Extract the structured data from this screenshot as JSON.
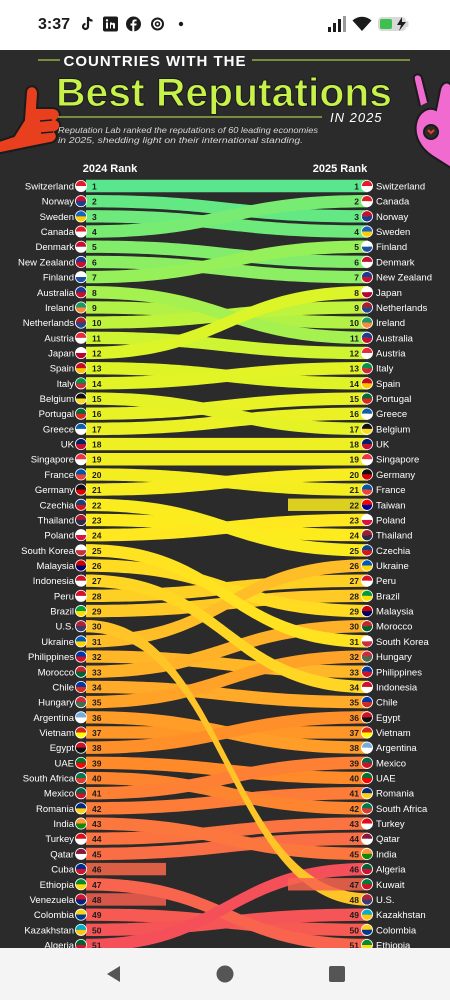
{
  "status_bar": {
    "time": "3:37",
    "icons": [
      "tiktok-icon",
      "linkedin-icon",
      "facebook-icon",
      "threads-icon",
      "dot-icon",
      "signal-icon",
      "wifi-icon",
      "battery-charging-icon"
    ]
  },
  "infographic": {
    "title_line1": "COUNTRIES WITH THE",
    "title_line2": "Best Reputations",
    "title_suffix": "IN 2025",
    "subtitle_line1": "Reputation Lab ranked the reputations of 60 leading economies",
    "subtitle_line2": "in 2025, shedding light on their international standing.",
    "colors": {
      "background": "#2a2a2a",
      "title": "#c6f24a",
      "accent": "#e8401f",
      "hand_right": "#f06ad0"
    }
  },
  "chart_data": {
    "type": "bump",
    "left_header": "2024 Rank",
    "right_header": "2025 Rank",
    "left": [
      {
        "rank": "1",
        "country": "Switzerland"
      },
      {
        "rank": "2",
        "country": "Norway"
      },
      {
        "rank": "3",
        "country": "Sweden"
      },
      {
        "rank": "4",
        "country": "Canada"
      },
      {
        "rank": "5",
        "country": "Denmark"
      },
      {
        "rank": "6",
        "country": "New Zealand"
      },
      {
        "rank": "7",
        "country": "Finland"
      },
      {
        "rank": "8",
        "country": "Australia"
      },
      {
        "rank": "9",
        "country": "Ireland"
      },
      {
        "rank": "10",
        "country": "Netherlands"
      },
      {
        "rank": "11",
        "country": "Austria"
      },
      {
        "rank": "12",
        "country": "Japan"
      },
      {
        "rank": "13",
        "country": "Spain"
      },
      {
        "rank": "14",
        "country": "Italy"
      },
      {
        "rank": "15",
        "country": "Belgium"
      },
      {
        "rank": "16",
        "country": "Portugal"
      },
      {
        "rank": "17",
        "country": "Greece"
      },
      {
        "rank": "18",
        "country": "UK"
      },
      {
        "rank": "19",
        "country": "Singapore"
      },
      {
        "rank": "20",
        "country": "France"
      },
      {
        "rank": "21",
        "country": "Germany"
      },
      {
        "rank": "22",
        "country": "Czechia"
      },
      {
        "rank": "23",
        "country": "Thailand"
      },
      {
        "rank": "24",
        "country": "Poland"
      },
      {
        "rank": "25",
        "country": "South Korea"
      },
      {
        "rank": "26",
        "country": "Malaysia"
      },
      {
        "rank": "27",
        "country": "Indonesia"
      },
      {
        "rank": "28",
        "country": "Peru"
      },
      {
        "rank": "29",
        "country": "Brazil"
      },
      {
        "rank": "30",
        "country": "U.S."
      },
      {
        "rank": "31",
        "country": "Ukraine"
      },
      {
        "rank": "32",
        "country": "Philippines"
      },
      {
        "rank": "33",
        "country": "Morocco"
      },
      {
        "rank": "34",
        "country": "Chile"
      },
      {
        "rank": "35",
        "country": "Hungary"
      },
      {
        "rank": "36",
        "country": "Argentina"
      },
      {
        "rank": "37",
        "country": "Vietnam"
      },
      {
        "rank": "38",
        "country": "Egypt"
      },
      {
        "rank": "39",
        "country": "UAE"
      },
      {
        "rank": "40",
        "country": "South Africa"
      },
      {
        "rank": "41",
        "country": "Mexico"
      },
      {
        "rank": "42",
        "country": "Romania"
      },
      {
        "rank": "43",
        "country": "India"
      },
      {
        "rank": "44",
        "country": "Turkey"
      },
      {
        "rank": "45",
        "country": "Qatar"
      },
      {
        "rank": "46",
        "country": "Cuba"
      },
      {
        "rank": "47",
        "country": "Ethiopia"
      },
      {
        "rank": "48",
        "country": "Venezuela"
      },
      {
        "rank": "49",
        "country": "Colombia"
      },
      {
        "rank": "50",
        "country": "Kazakhstan"
      },
      {
        "rank": "51",
        "country": "Algeria"
      }
    ],
    "right": [
      {
        "rank": "1",
        "country": "Switzerland"
      },
      {
        "rank": "2",
        "country": "Canada"
      },
      {
        "rank": "3",
        "country": "Norway"
      },
      {
        "rank": "4",
        "country": "Sweden"
      },
      {
        "rank": "5",
        "country": "Finland"
      },
      {
        "rank": "6",
        "country": "Denmark"
      },
      {
        "rank": "7",
        "country": "New Zealand"
      },
      {
        "rank": "8",
        "country": "Japan"
      },
      {
        "rank": "9",
        "country": "Netherlands"
      },
      {
        "rank": "10",
        "country": "Ireland"
      },
      {
        "rank": "11",
        "country": "Australia"
      },
      {
        "rank": "12",
        "country": "Austria"
      },
      {
        "rank": "13",
        "country": "Italy"
      },
      {
        "rank": "14",
        "country": "Spain"
      },
      {
        "rank": "15",
        "country": "Portugal"
      },
      {
        "rank": "16",
        "country": "Greece"
      },
      {
        "rank": "17",
        "country": "Belgium"
      },
      {
        "rank": "18",
        "country": "UK"
      },
      {
        "rank": "19",
        "country": "Singapore"
      },
      {
        "rank": "20",
        "country": "Germany"
      },
      {
        "rank": "21",
        "country": "France"
      },
      {
        "rank": "22",
        "country": "Taiwan"
      },
      {
        "rank": "23",
        "country": "Poland"
      },
      {
        "rank": "24",
        "country": "Thailand"
      },
      {
        "rank": "25",
        "country": "Czechia"
      },
      {
        "rank": "26",
        "country": "Ukraine"
      },
      {
        "rank": "27",
        "country": "Peru"
      },
      {
        "rank": "28",
        "country": "Brazil"
      },
      {
        "rank": "29",
        "country": "Malaysia"
      },
      {
        "rank": "30",
        "country": "Morocco"
      },
      {
        "rank": "31",
        "country": "South Korea"
      },
      {
        "rank": "32",
        "country": "Hungary"
      },
      {
        "rank": "33",
        "country": "Philippines"
      },
      {
        "rank": "34",
        "country": "Indonesia"
      },
      {
        "rank": "35",
        "country": "Chile"
      },
      {
        "rank": "36",
        "country": "Egypt"
      },
      {
        "rank": "37",
        "country": "Vietnam"
      },
      {
        "rank": "38",
        "country": "Argentina"
      },
      {
        "rank": "39",
        "country": "Mexico"
      },
      {
        "rank": "40",
        "country": "UAE"
      },
      {
        "rank": "41",
        "country": "Romania"
      },
      {
        "rank": "42",
        "country": "South Africa"
      },
      {
        "rank": "43",
        "country": "Turkey"
      },
      {
        "rank": "44",
        "country": "Qatar"
      },
      {
        "rank": "45",
        "country": "India"
      },
      {
        "rank": "46",
        "country": "Algeria"
      },
      {
        "rank": "47",
        "country": "Kuwait"
      },
      {
        "rank": "48",
        "country": "U.S."
      },
      {
        "rank": "49",
        "country": "Kazakhstan"
      },
      {
        "rank": "50",
        "country": "Colombia"
      },
      {
        "rank": "51",
        "country": "Ethiopia"
      }
    ],
    "flag_colors": {
      "Switzerland": [
        "#e11d2a",
        "#ffffff"
      ],
      "Norway": [
        "#c8102e",
        "#1d3c8f"
      ],
      "Sweden": [
        "#1565c0",
        "#ffcd00"
      ],
      "Canada": [
        "#e11d2a",
        "#ffffff"
      ],
      "Denmark": [
        "#c8102e",
        "#ffffff"
      ],
      "New Zealand": [
        "#1d3c8f",
        "#c8102e"
      ],
      "Finland": [
        "#ffffff",
        "#1d4fa8"
      ],
      "Australia": [
        "#1d3c8f",
        "#c8102e"
      ],
      "Ireland": [
        "#169b62",
        "#ff883e"
      ],
      "Netherlands": [
        "#ae1c28",
        "#21468b"
      ],
      "Austria": [
        "#ed2939",
        "#ffffff"
      ],
      "Japan": [
        "#ffffff",
        "#bc002d"
      ],
      "Spain": [
        "#c60b1e",
        "#ffc400"
      ],
      "Italy": [
        "#009246",
        "#ce2b37"
      ],
      "Belgium": [
        "#111111",
        "#fdda24"
      ],
      "Portugal": [
        "#046a38",
        "#da291c"
      ],
      "Greece": [
        "#0d5eaf",
        "#ffffff"
      ],
      "UK": [
        "#012169",
        "#c8102e"
      ],
      "Singapore": [
        "#ef3340",
        "#ffffff"
      ],
      "France": [
        "#0055a4",
        "#ef4135"
      ],
      "Germany": [
        "#111111",
        "#dd0000"
      ],
      "Czechia": [
        "#11457e",
        "#d7141a"
      ],
      "Thailand": [
        "#a51931",
        "#2d2a4a"
      ],
      "Poland": [
        "#ffffff",
        "#dc143c"
      ],
      "South Korea": [
        "#ffffff",
        "#cd2e3a"
      ],
      "Malaysia": [
        "#cc0001",
        "#010066"
      ],
      "Indonesia": [
        "#ce1126",
        "#ffffff"
      ],
      "Peru": [
        "#d91023",
        "#ffffff"
      ],
      "Brazil": [
        "#009c3b",
        "#ffdf00"
      ],
      "U.S.": [
        "#b22234",
        "#3c3b6e"
      ],
      "Ukraine": [
        "#0057b7",
        "#ffd700"
      ],
      "Philippines": [
        "#0038a8",
        "#ce1126"
      ],
      "Morocco": [
        "#c1272d",
        "#006233"
      ],
      "Chile": [
        "#0039a6",
        "#d52b1e"
      ],
      "Hungary": [
        "#cd2a3e",
        "#436f4d"
      ],
      "Argentina": [
        "#74acdf",
        "#ffffff"
      ],
      "Vietnam": [
        "#da251d",
        "#ffff00"
      ],
      "Egypt": [
        "#ce1126",
        "#111111"
      ],
      "UAE": [
        "#00732f",
        "#ff0000"
      ],
      "South Africa": [
        "#007a4d",
        "#de3831"
      ],
      "Mexico": [
        "#006847",
        "#ce1126"
      ],
      "Romania": [
        "#002b7f",
        "#fcd116"
      ],
      "India": [
        "#ff9933",
        "#138808"
      ],
      "Turkey": [
        "#e30a17",
        "#ffffff"
      ],
      "Qatar": [
        "#8a1538",
        "#ffffff"
      ],
      "Cuba": [
        "#002a8f",
        "#cf142b"
      ],
      "Ethiopia": [
        "#078930",
        "#fcdd09"
      ],
      "Venezuela": [
        "#cf142b",
        "#00247d"
      ],
      "Colombia": [
        "#fcd116",
        "#003893"
      ],
      "Kazakhstan": [
        "#00afca",
        "#fec50c"
      ],
      "Algeria": [
        "#006233",
        "#d21034"
      ],
      "Taiwan": [
        "#fe0000",
        "#000095"
      ],
      "Kuwait": [
        "#007a3d",
        "#ce1126"
      ]
    }
  },
  "nav_bar": {
    "buttons": [
      "back-button",
      "home-button",
      "recents-button"
    ]
  }
}
